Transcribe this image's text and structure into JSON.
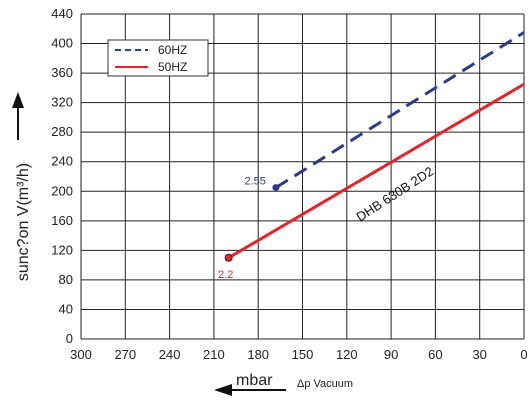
{
  "chart_data": {
    "type": "line",
    "xlabel": "mbar",
    "xlabel_note": "Δp  Vacuum",
    "ylabel": "sunc?on V(m³/h)",
    "xlim": [
      300,
      0
    ],
    "ylim": [
      0,
      440
    ],
    "x_ticks": [
      300,
      270,
      240,
      210,
      180,
      150,
      120,
      90,
      60,
      30,
      0
    ],
    "y_ticks": [
      0,
      40,
      80,
      120,
      160,
      200,
      240,
      280,
      320,
      360,
      400,
      440
    ],
    "grid": true,
    "legend_position": "top-left",
    "series": [
      {
        "name": "60HZ",
        "color": "#2e3a8c",
        "style": "dashed",
        "x": [
          168,
          0
        ],
        "y": [
          205,
          415
        ],
        "start_label": "2.55"
      },
      {
        "name": "50HZ",
        "color": "#e0262b",
        "style": "solid",
        "x": [
          200,
          0
        ],
        "y": [
          110,
          345
        ],
        "start_label": "2.2"
      }
    ],
    "annotation": "DHB 630B 2D2"
  }
}
